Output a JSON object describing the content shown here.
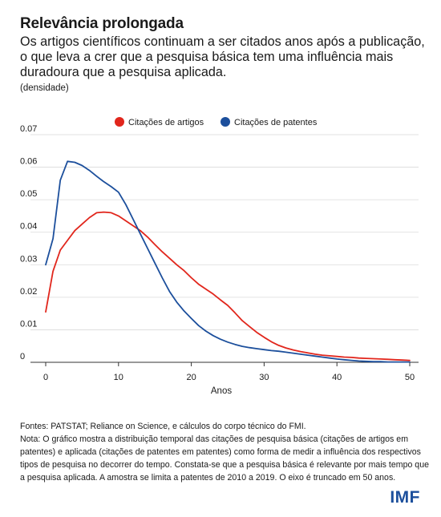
{
  "header": {
    "title": "Relevância prolongada",
    "subtitle": "Os artigos científicos continuam a ser citados anos após a publicação, o que leva a crer que a pesquisa básica tem uma influência mais duradoura que a pesquisa aplicada.",
    "unit": "(densidade)"
  },
  "chart_data": {
    "type": "line",
    "xlabel": "Anos",
    "ylabel": "",
    "xlim": [
      0,
      50
    ],
    "ylim": [
      0,
      0.07
    ],
    "xticks": [
      0,
      10,
      20,
      30,
      40,
      50
    ],
    "yticks": [
      0,
      0.01,
      0.02,
      0.03,
      0.04,
      0.05,
      0.06,
      0.07
    ],
    "ytick_labels": [
      "0",
      "0.01",
      "0.02",
      "0.03",
      "0.04",
      "0.05",
      "0.06",
      "0.07"
    ],
    "grid": "horizontal",
    "legend": "top-center",
    "series": [
      {
        "name": "Citações de artigos",
        "color": "#e1261c",
        "x": [
          0,
          1,
          2,
          3,
          4,
          5,
          6,
          7,
          8,
          9,
          10,
          11,
          12,
          13,
          14,
          15,
          16,
          17,
          18,
          19,
          20,
          21,
          22,
          23,
          24,
          25,
          26,
          27,
          28,
          29,
          30,
          31,
          32,
          33,
          34,
          35,
          36,
          37,
          38,
          39,
          40,
          41,
          42,
          43,
          44,
          45,
          46,
          47,
          48,
          49,
          50
        ],
        "values": [
          0.0155,
          0.028,
          0.0345,
          0.0375,
          0.0405,
          0.0425,
          0.0445,
          0.046,
          0.0462,
          0.046,
          0.045,
          0.0435,
          0.042,
          0.0405,
          0.0385,
          0.0362,
          0.034,
          0.032,
          0.03,
          0.0282,
          0.026,
          0.024,
          0.0225,
          0.021,
          0.0192,
          0.0175,
          0.0152,
          0.0128,
          0.011,
          0.0092,
          0.0077,
          0.0063,
          0.0052,
          0.0044,
          0.0038,
          0.0033,
          0.0029,
          0.0025,
          0.0022,
          0.002,
          0.0018,
          0.0016,
          0.0015,
          0.0013,
          0.0012,
          0.0011,
          0.001,
          0.0009,
          0.0008,
          0.0007,
          0.0006
        ]
      },
      {
        "name": "Citações de patentes",
        "color": "#1c4f9c",
        "x": [
          0,
          1,
          2,
          3,
          4,
          5,
          6,
          7,
          8,
          9,
          10,
          11,
          12,
          13,
          14,
          15,
          16,
          17,
          18,
          19,
          20,
          21,
          22,
          23,
          24,
          25,
          26,
          27,
          28,
          29,
          30,
          31,
          32,
          33,
          34,
          35,
          36,
          37,
          38,
          39,
          40,
          41,
          42,
          43,
          44,
          45,
          46,
          47,
          48,
          49,
          50
        ],
        "values": [
          0.03,
          0.038,
          0.056,
          0.0618,
          0.0615,
          0.0605,
          0.059,
          0.0572,
          0.0555,
          0.054,
          0.0523,
          0.0485,
          0.044,
          0.0395,
          0.035,
          0.0305,
          0.026,
          0.0218,
          0.0185,
          0.0158,
          0.0135,
          0.0113,
          0.0096,
          0.0082,
          0.0071,
          0.0062,
          0.0055,
          0.0049,
          0.0045,
          0.0042,
          0.0039,
          0.0036,
          0.0034,
          0.0031,
          0.0028,
          0.0025,
          0.0022,
          0.0019,
          0.0016,
          0.0013,
          0.001,
          0.0008,
          0.0006,
          0.0004,
          0.0003,
          0.0002,
          0.0002,
          0.0001,
          0.0001,
          0.0001,
          0.0001
        ]
      }
    ]
  },
  "footer": {
    "sources": "Fontes: PATSTAT; Reliance on Science, e cálculos do corpo técnico do FMI.",
    "note": "Nota: O gráfico mostra a distribuição temporal das citações de pesquisa básica (citações de artigos em patentes) e aplicada (citações de patentes em patentes) como forma de medir a influência dos respectivos tipos de pesquisa no decorrer do tempo. Constata-se que a pesquisa básica é relevante por mais tempo que a pesquisa aplicada. A amostra se limita a patentes de 2010 a 2019. O eixo é truncado em 50 anos."
  },
  "brand": {
    "logo_text": "IMF",
    "color": "#1c4f9c"
  }
}
